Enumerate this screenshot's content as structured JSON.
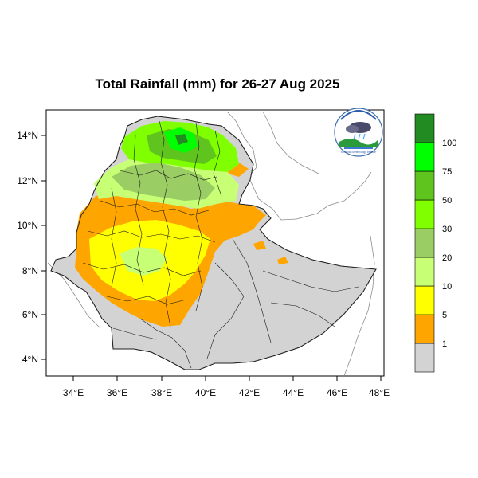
{
  "title": "Total Rainfall (mm) for 26-27 Aug 2025",
  "map": {
    "x_ticks": [
      "34°E",
      "36°E",
      "38°E",
      "40°E",
      "42°E",
      "44°E",
      "46°E",
      "48°E"
    ],
    "y_ticks": [
      "14°N",
      "12°N",
      "10°N",
      "8°N",
      "6°N",
      "4°N"
    ],
    "lon_range": [
      32.8,
      48.2
    ],
    "lat_range": [
      3.2,
      15.0
    ]
  },
  "legend": {
    "labels": [
      "1",
      "5",
      "10",
      "20",
      "30",
      "50",
      "75",
      "100"
    ],
    "colors": [
      "#d3d3d3",
      "#ffa500",
      "#ffff00",
      "#c7ff75",
      "#9acd63",
      "#7fff00",
      "#5fc41e",
      "#00ff00",
      "#228b22"
    ],
    "color_meaning": [
      "<1",
      "1-5",
      "5-10",
      "10-20",
      "20-30",
      "30-50",
      "50-75",
      "75-100",
      ">100"
    ]
  },
  "logo": {
    "caption": "Ethiopian Meteorology Institute"
  }
}
